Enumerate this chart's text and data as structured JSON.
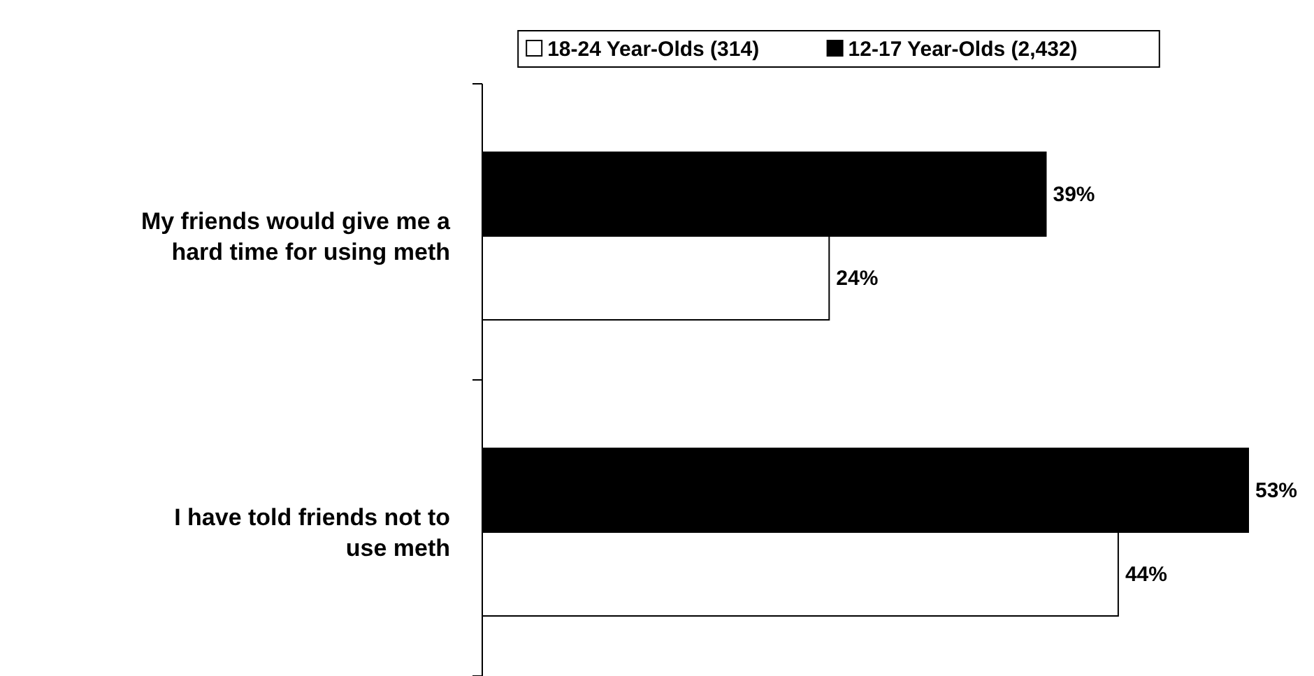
{
  "chart_data": {
    "type": "bar",
    "orientation": "horizontal",
    "categories": [
      "My friends would give me a hard time for using meth",
      "I have told friends not to use meth"
    ],
    "series": [
      {
        "name": "18-24 Year-Olds (314)",
        "color": "#ffffff",
        "values": [
          24,
          44
        ],
        "value_labels": [
          "24%",
          "44%"
        ]
      },
      {
        "name": "12-17 Year-Olds (2,432)",
        "color": "#000000",
        "values": [
          39,
          53
        ],
        "value_labels": [
          "39%",
          "53%"
        ]
      }
    ],
    "legend": "top"
  }
}
